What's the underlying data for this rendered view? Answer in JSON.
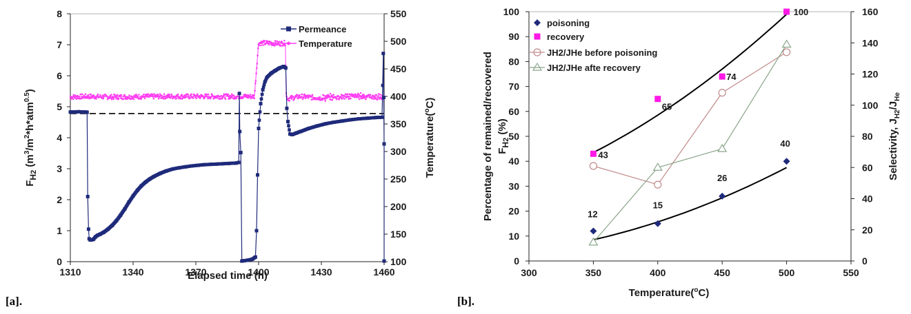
{
  "panel_labels": {
    "a": "[a].",
    "b": "[b]."
  },
  "chart_data": [
    {
      "type": "line",
      "xlabel": "Elapsed time (h)",
      "ylabel": "FH2 (m3/m2*h*atm0.5)",
      "ylabel_parts": {
        "f": "F",
        "h2": "H",
        "h2_sub": "2",
        "u1": " (m",
        "u1_sup": "3",
        "u2": "/m",
        "u2_sup": "2",
        "u3": "*h*atm",
        "u3_sup": "0.5",
        "u4": ")"
      },
      "y2label": "Temperature(°C)",
      "y2label_parts": {
        "pre": "Temperature(",
        "sup": "o",
        "post": "C)"
      },
      "xlim": [
        1310,
        1460
      ],
      "ylim": [
        0,
        8
      ],
      "y2lim": [
        100,
        550
      ],
      "xticks": [
        1310,
        1340,
        1370,
        1400,
        1430,
        1460
      ],
      "yticks": [
        0,
        1,
        2,
        3,
        4,
        5,
        6,
        7,
        8
      ],
      "y2ticks": [
        100,
        150,
        200,
        250,
        300,
        350,
        400,
        450,
        500,
        550
      ],
      "legend_position": "top-right",
      "reference_line": {
        "y": 4.78,
        "style": "dashed"
      },
      "series": [
        {
          "name": "Permeance",
          "color": "#1f2a7a",
          "marker": "square",
          "axis": "left",
          "x": [
            1310,
            1312,
            1314,
            1316,
            1317.5,
            1318,
            1318.3,
            1318.7,
            1319,
            1319.5,
            1320,
            1321,
            1322,
            1323,
            1324,
            1326,
            1328,
            1330,
            1332,
            1334,
            1336,
            1338,
            1340,
            1342,
            1344,
            1346,
            1348,
            1350,
            1353,
            1356,
            1359,
            1362,
            1365,
            1368,
            1371,
            1374,
            1377,
            1380,
            1383,
            1386,
            1389,
            1390.5,
            1390.8,
            1391,
            1391.5,
            1392,
            1393,
            1395,
            1397,
            1398.5,
            1399,
            1399.5,
            1400,
            1401,
            1402,
            1403,
            1404,
            1406,
            1408,
            1410,
            1412,
            1413,
            1413.5,
            1414,
            1415,
            1416,
            1418,
            1420,
            1424,
            1428,
            1432,
            1436,
            1440,
            1444,
            1448,
            1452,
            1456,
            1459,
            1459.6,
            1459.8,
            1460,
            1460
          ],
          "y": [
            4.83,
            4.83,
            4.84,
            4.83,
            4.83,
            4.82,
            2.1,
            1.05,
            0.74,
            0.7,
            0.7,
            0.72,
            0.8,
            0.85,
            0.88,
            0.95,
            1.05,
            1.17,
            1.32,
            1.5,
            1.7,
            1.92,
            2.12,
            2.3,
            2.45,
            2.57,
            2.67,
            2.75,
            2.85,
            2.93,
            2.99,
            3.03,
            3.06,
            3.09,
            3.11,
            3.13,
            3.14,
            3.15,
            3.16,
            3.17,
            3.18,
            3.2,
            5.43,
            4.2,
            3.52,
            0.02,
            0.03,
            0.05,
            0.08,
            0.15,
            1.0,
            2.8,
            4.3,
            5.1,
            5.55,
            5.8,
            5.95,
            6.08,
            6.17,
            6.25,
            6.3,
            6.25,
            4.95,
            4.52,
            4.12,
            4.1,
            4.15,
            4.2,
            4.3,
            4.38,
            4.45,
            4.5,
            4.54,
            4.58,
            4.61,
            4.63,
            4.65,
            4.66,
            6.72,
            5.3,
            3.8,
            0.02
          ]
        },
        {
          "name": "Temperature",
          "color": "#ff3df2",
          "marker": "dot",
          "axis": "right",
          "x": [
            1310,
            1318,
            1330,
            1350,
            1370,
            1390,
            1391.5,
            1392,
            1394,
            1396,
            1398,
            1400,
            1405,
            1410,
            1412.8,
            1413.2,
            1414,
            1420,
            1430,
            1440,
            1450,
            1459,
            1460
          ],
          "y": [
            399,
            400,
            399,
            400,
            400,
            400,
            400,
            400,
            400,
            400,
            400,
            497,
            497,
            496,
            497,
            400,
            396,
            400,
            397,
            400,
            401,
            398,
            400
          ]
        }
      ]
    },
    {
      "type": "scatter",
      "xlabel": "Temperature(°C)",
      "xlabel_parts": {
        "pre": "Temperature(",
        "sup": "o",
        "post": "C)"
      },
      "ylabel": "Percentage of remained/recovered FH2 (%)",
      "ylabel_parts": {
        "line1": "Percentage of remained/recovered",
        "f": "F",
        "h2": "H",
        "h2_sub": "2",
        "pct": " (%)"
      },
      "y2label": "Selectivity, JH2/JHe",
      "y2label_parts": {
        "pre": "Selectivity, J",
        "h2_sub": "H2",
        "mid": "/J",
        "he_sub": "He"
      },
      "xlim": [
        300,
        550
      ],
      "ylim": [
        0,
        100
      ],
      "y2lim": [
        0,
        160
      ],
      "xticks": [
        300,
        350,
        400,
        450,
        500,
        550
      ],
      "yticks": [
        0,
        10,
        20,
        30,
        40,
        50,
        60,
        70,
        80,
        90,
        100
      ],
      "y2ticks": [
        0,
        20,
        40,
        60,
        80,
        100,
        120,
        140,
        160
      ],
      "legend_position": "top-left",
      "series": [
        {
          "name": "poisoning",
          "marker": "diamond",
          "color": "#1f2a7a",
          "axis": "left",
          "x": [
            350,
            400,
            450,
            500
          ],
          "y": [
            12,
            15,
            26,
            40
          ],
          "labels": [
            "12",
            "15",
            "26",
            "40"
          ]
        },
        {
          "name": "recovery",
          "marker": "square",
          "color": "#ff19e6",
          "axis": "left",
          "x": [
            350,
            400,
            450,
            500
          ],
          "y": [
            43,
            65,
            74,
            100
          ],
          "labels": [
            "43",
            "65",
            "74",
            "100"
          ]
        },
        {
          "name": "JH2/JHe before poisoning",
          "marker": "circle-open",
          "color": "#c08a8a",
          "axis": "right",
          "x": [
            350,
            400,
            450,
            500
          ],
          "y": [
            61,
            49,
            108,
            134
          ]
        },
        {
          "name": "JH2/JHe afte recovery",
          "marker": "triangle-open",
          "color": "#8aa58a",
          "axis": "right",
          "x": [
            350,
            400,
            450,
            500
          ],
          "y": [
            12,
            60,
            72,
            139
          ]
        }
      ],
      "trendlines": [
        {
          "of": "poisoning",
          "color": "#000000",
          "x": [
            350,
            500
          ],
          "y": [
            8.5,
            37.5
          ],
          "curvature": 0.0005
        },
        {
          "of": "recovery",
          "color": "#000000",
          "x": [
            350,
            500
          ],
          "y": [
            43.5,
            99
          ],
          "curvature": 0.0007
        }
      ]
    }
  ]
}
